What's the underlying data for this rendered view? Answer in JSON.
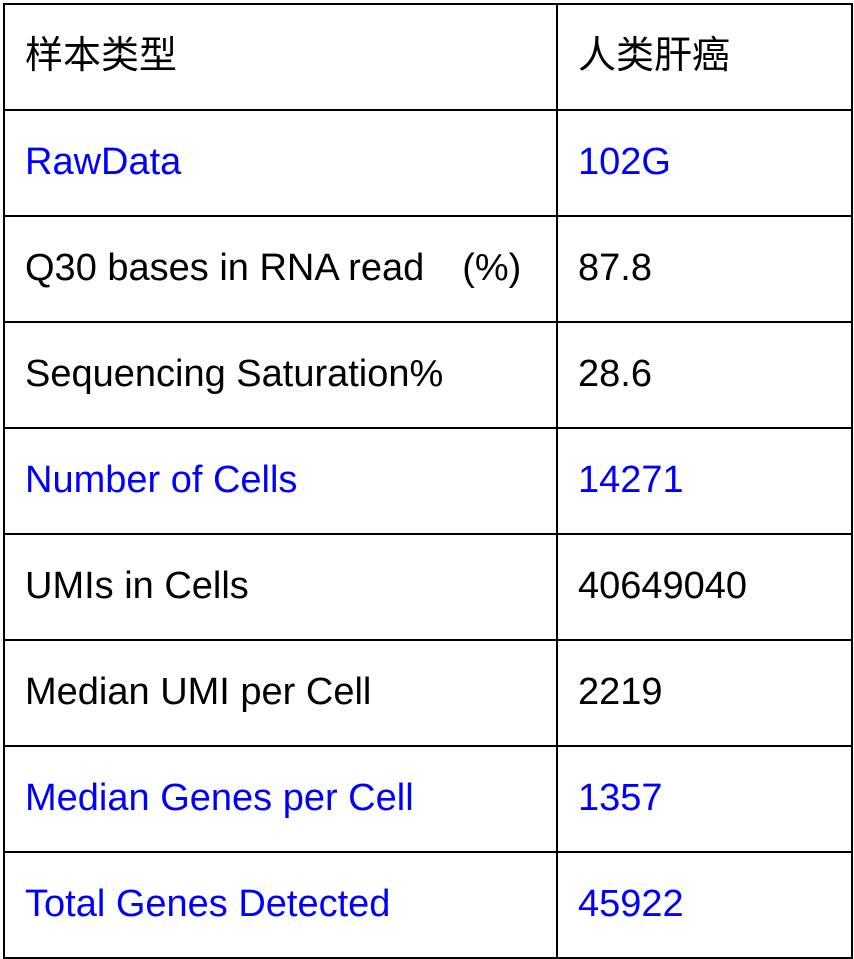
{
  "colors": {
    "accent_blue": "#0000ff",
    "text_black": "#000000",
    "border_black": "#000000",
    "background": "#ffffff"
  },
  "table": {
    "header": {
      "metric": "样本类型",
      "sample": "人类肝癌"
    },
    "rows": [
      {
        "label": "RawData",
        "value": "102G",
        "highlight": true
      },
      {
        "label": "Q30 bases in RNA read　(%)",
        "value": "87.8",
        "highlight": false
      },
      {
        "label": "Sequencing Saturation%",
        "value": "28.6",
        "highlight": false
      },
      {
        "label": "Number of Cells",
        "value": "14271",
        "highlight": true
      },
      {
        "label": "UMIs in Cells",
        "value": "40649040",
        "highlight": false
      },
      {
        "label": "Median UMI per Cell",
        "value": "2219",
        "highlight": false
      },
      {
        "label": "Median Genes per Cell",
        "value": "1357",
        "highlight": true
      },
      {
        "label": "Total Genes Detected",
        "value": "45922",
        "highlight": true
      }
    ]
  }
}
